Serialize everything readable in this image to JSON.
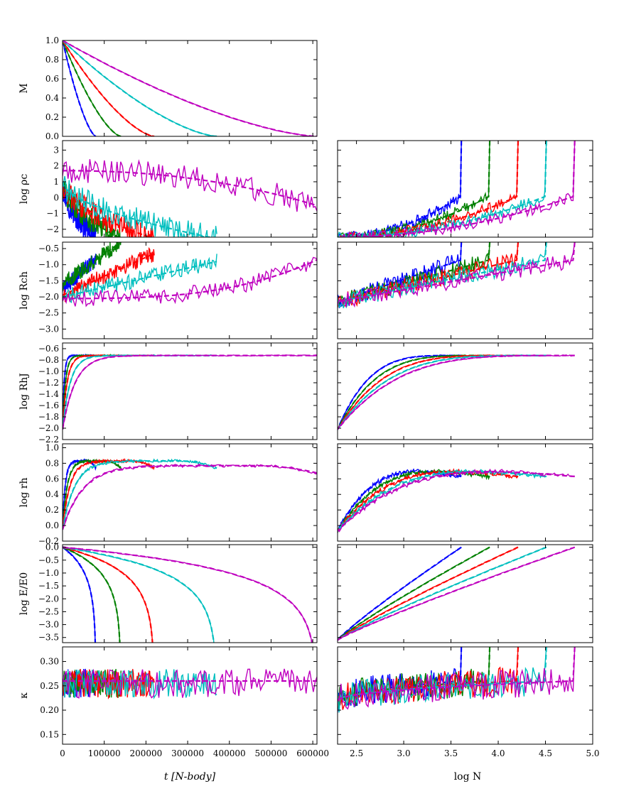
{
  "chart_data": {
    "type": "line",
    "colors": {
      "blue": "#0000ff",
      "green": "#008000",
      "red": "#ff0000",
      "cyan": "#00bfbf",
      "magenta": "#bf00bf"
    },
    "series_order": [
      "blue",
      "green",
      "red",
      "cyan",
      "magenta"
    ],
    "end_t": {
      "blue": 80000,
      "green": 140000,
      "red": 220000,
      "cyan": 370000,
      "magenta": 610000
    },
    "logN0": {
      "blue": 3.61,
      "green": 3.91,
      "red": 4.21,
      "cyan": 4.51,
      "magenta": 4.81
    },
    "xlabel_left": "t [N-body]",
    "xlabel_right": "log N",
    "xlim_left": [
      0,
      610000
    ],
    "xlim_right": [
      2.3,
      5.0
    ],
    "xticks_left": [
      "0",
      "100000",
      "200000",
      "300000",
      "400000",
      "500000",
      "600000"
    ],
    "xticks_right": [
      "2.5",
      "3.0",
      "3.5",
      "4.0",
      "4.5",
      "5.0"
    ],
    "rows": [
      {
        "ylabel": "M",
        "ylim": [
          0.0,
          1.0
        ],
        "yticks": [
          "0.0",
          "0.2",
          "0.4",
          "0.6",
          "0.8",
          "1.0"
        ],
        "has_right": false
      },
      {
        "ylabel": "log ρc",
        "ylim": [
          -2.5,
          3.6
        ],
        "yticks": [
          "−2",
          "−1",
          "0",
          "1",
          "2",
          "3"
        ],
        "has_right": true
      },
      {
        "ylabel": "log Rch",
        "ylim": [
          -3.3,
          -0.3
        ],
        "yticks": [
          "−3.0",
          "−2.5",
          "−2.0",
          "−1.5",
          "−1.0",
          "−0.5"
        ],
        "has_right": true
      },
      {
        "ylabel": "log RhJ",
        "ylim": [
          -2.2,
          -0.5
        ],
        "yticks": [
          "−2.2",
          "−2.0",
          "−1.8",
          "−1.6",
          "−1.4",
          "−1.2",
          "−1.0",
          "−0.8",
          "−0.6"
        ],
        "has_right": true
      },
      {
        "ylabel": "log rh",
        "ylim": [
          -0.2,
          1.05
        ],
        "yticks": [
          "−0.2",
          "0.0",
          "0.2",
          "0.4",
          "0.6",
          "0.8",
          "1.0"
        ],
        "has_right": true
      },
      {
        "ylabel": "log E/E0",
        "ylim": [
          -3.7,
          0.1
        ],
        "yticks": [
          "−3.5",
          "−3.0",
          "−2.5",
          "−2.0",
          "−1.5",
          "−1.0",
          "−0.5",
          "0.0"
        ],
        "has_right": true
      },
      {
        "ylabel": "κ",
        "ylim": [
          0.13,
          0.33
        ],
        "yticks": [
          "0.15",
          "0.20",
          "0.25",
          "0.30"
        ],
        "has_right": true
      }
    ]
  }
}
